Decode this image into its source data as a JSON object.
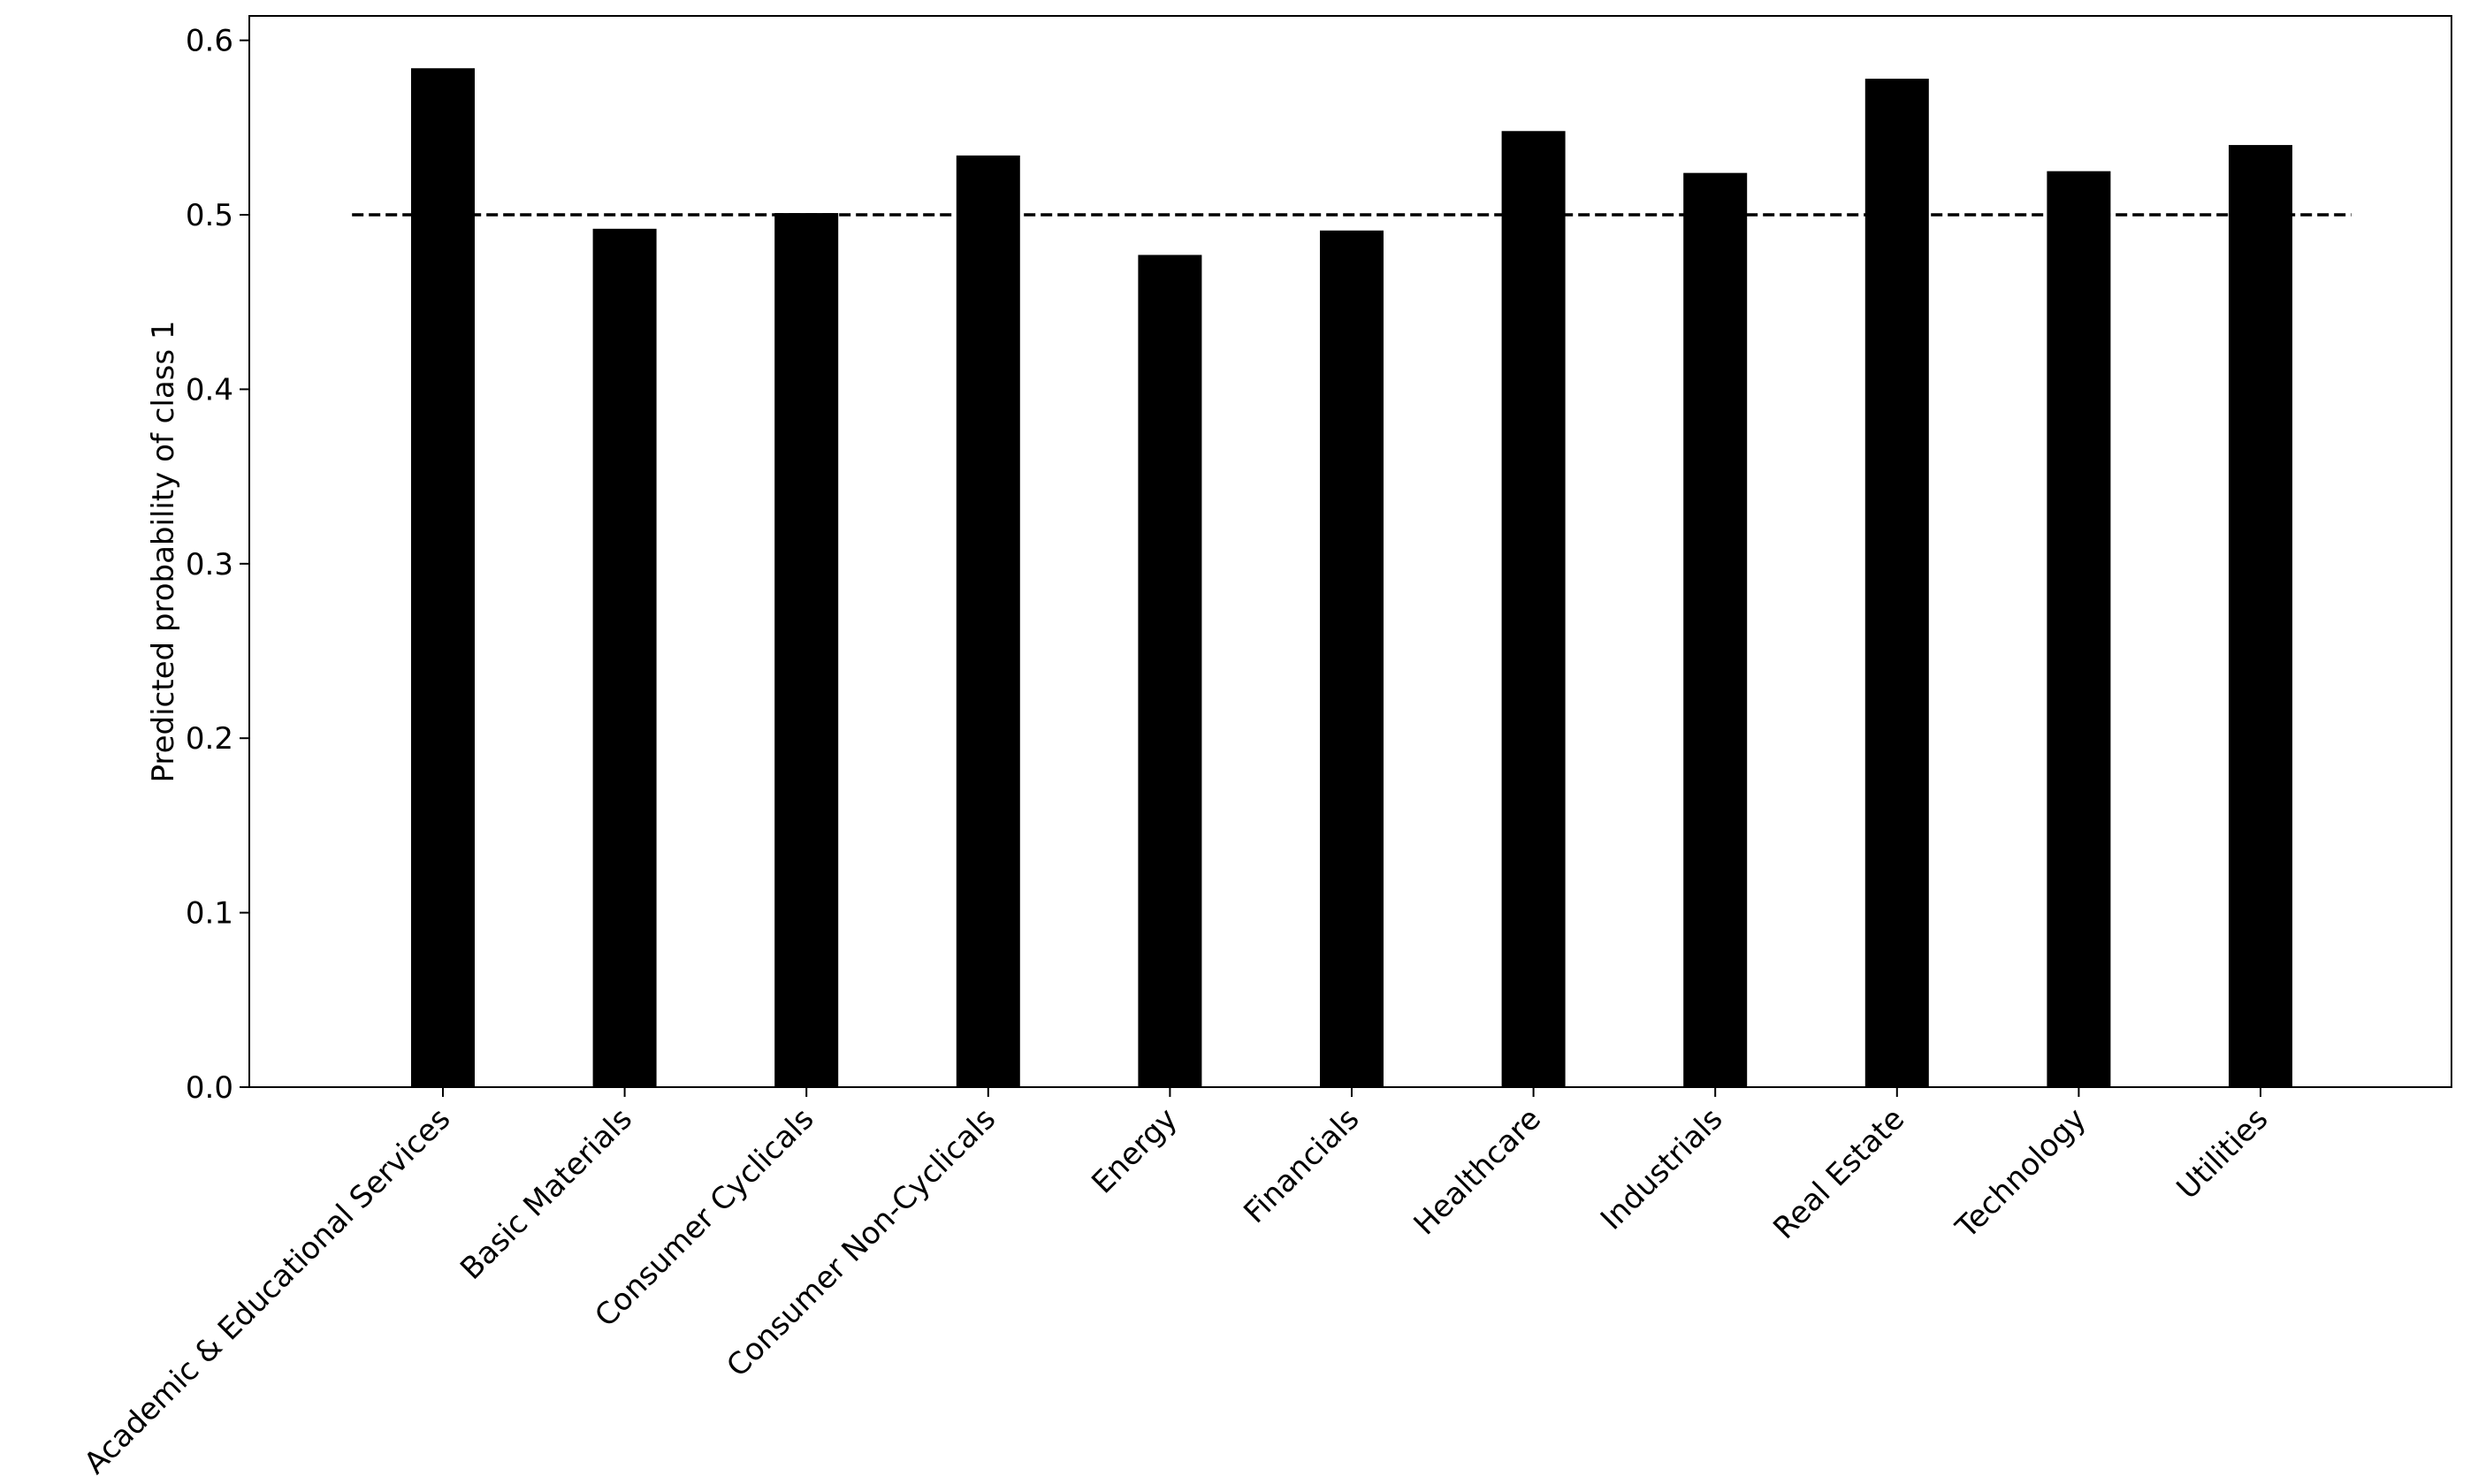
{
  "chart_data": {
    "type": "bar",
    "y_label": "Predicted probability of class 1",
    "categories": [
      "Academic & Educational Services",
      "Basic Materials",
      "Consumer Cyclicals",
      "Consumer Non-Cyclicals",
      "Energy",
      "Financials",
      "Healthcare",
      "Industrials",
      "Real Estate",
      "Technology",
      "Utilities"
    ],
    "values": [
      0.584,
      0.492,
      0.501,
      0.534,
      0.477,
      0.491,
      0.548,
      0.524,
      0.578,
      0.525,
      0.54
    ],
    "color": "#000000",
    "ylim": [
      0,
      0.614
    ],
    "yticks": [
      {
        "value": 0,
        "label": "0.0"
      },
      0.1,
      0.2,
      0.3,
      0.4,
      0.5,
      0.6
    ],
    "hline": {
      "value": 0.5,
      "style": "dashed",
      "color": "#000000"
    },
    "grid": false
  }
}
